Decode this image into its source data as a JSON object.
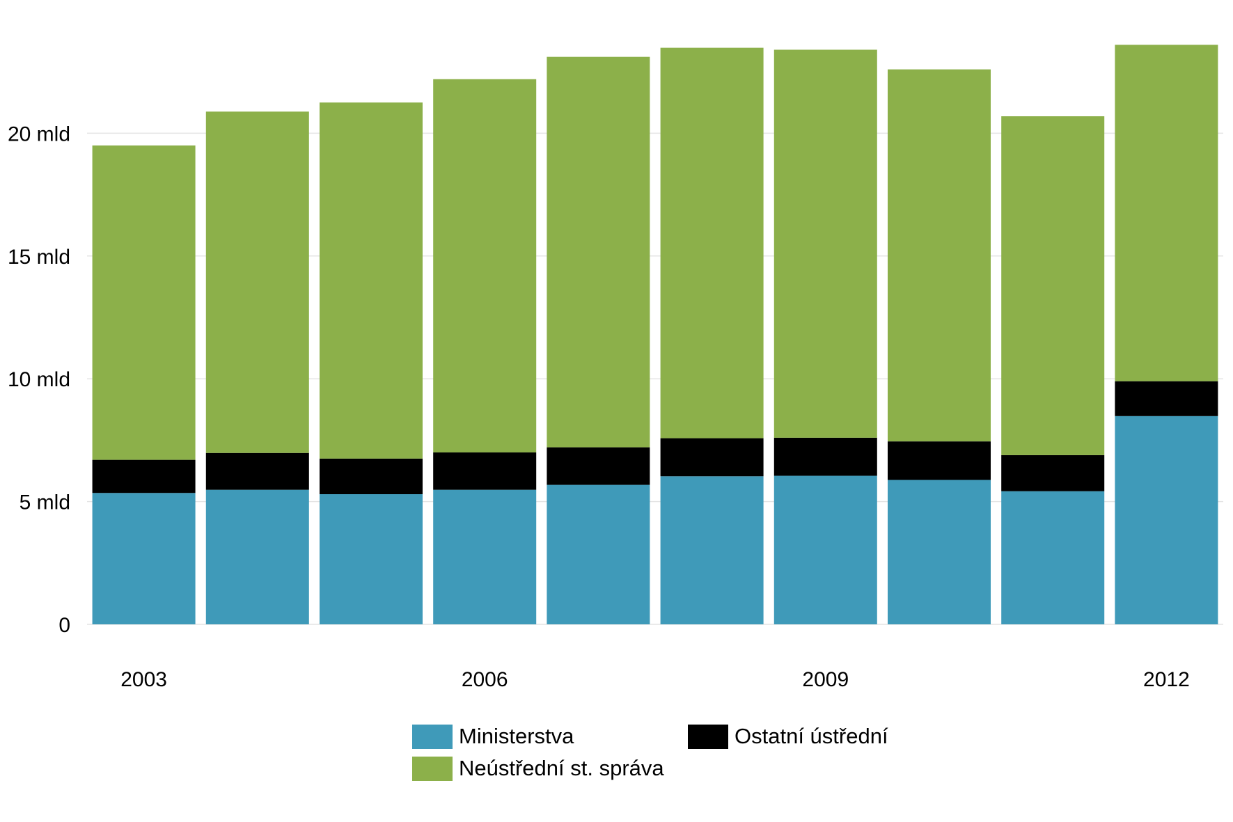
{
  "chart_data": {
    "type": "bar",
    "stacked": true,
    "categories": [
      "2003",
      "2004",
      "2005",
      "2006",
      "2007",
      "2008",
      "2009",
      "2010",
      "2011",
      "2012"
    ],
    "x_tick_labels": [
      "2003",
      "2006",
      "2009",
      "2012"
    ],
    "series": [
      {
        "name": "Ministerstva",
        "color": "#3f9ab9",
        "values": [
          5.35,
          5.48,
          5.3,
          5.48,
          5.68,
          6.03,
          6.05,
          5.88,
          5.42,
          8.48
        ]
      },
      {
        "name": "Ostatní ústřední",
        "color": "#000000",
        "values": [
          1.35,
          1.5,
          1.45,
          1.52,
          1.53,
          1.55,
          1.55,
          1.57,
          1.47,
          1.42
        ]
      },
      {
        "name": "Neústřední st. správa",
        "color": "#8cb04a",
        "values": [
          12.8,
          13.9,
          14.5,
          15.2,
          15.9,
          15.9,
          15.8,
          15.15,
          13.8,
          13.7
        ]
      }
    ],
    "y_ticks": [
      {
        "value": 0,
        "label": "0"
      },
      {
        "value": 5,
        "label": "5 mld"
      },
      {
        "value": 10,
        "label": "10 mld"
      },
      {
        "value": 15,
        "label": "15 mld"
      },
      {
        "value": 20,
        "label": "20 mld"
      }
    ],
    "ylim": [
      0,
      25
    ],
    "grid": true,
    "legend_position": "bottom"
  }
}
